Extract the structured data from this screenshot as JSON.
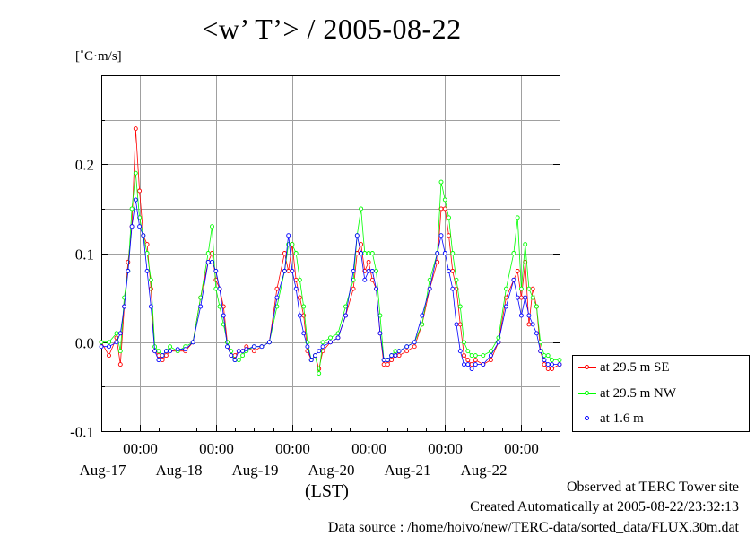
{
  "title": "<w’ T’> / 2005-08-22",
  "unit_label": "[˚C·m/s]",
  "xlabel": "(LST)",
  "footer": {
    "line1": "Observed at TERC Tower site",
    "line2": "Created Automatically at 2005-08-22/23:32:13",
    "line3": "Data source : /home/hoivo/new/TERC-data/sorted_data/FLUX.30m.dat"
  },
  "chart_data": {
    "type": "line",
    "title": "<w’ T’> / 2005-08-22",
    "ylabel": "[˚C·m/s]",
    "xlabel": "(LST)",
    "ylim": [
      -0.1,
      0.3
    ],
    "xlim": [
      16.5,
      22.5
    ],
    "yticks": [
      -0.1,
      0.0,
      0.1,
      0.2
    ],
    "ytick_labels": [
      "-0.1",
      "0.0",
      "0.1",
      "0.2"
    ],
    "xticks": [
      17,
      18,
      19,
      20,
      21,
      22
    ],
    "xtick_labels": [
      "00:00",
      "00:00",
      "00:00",
      "00:00",
      "00:00",
      "00:00"
    ],
    "date_labels": [
      "Aug-17",
      "Aug-18",
      "Aug-19",
      "Aug-20",
      "Aug-21",
      "Aug-22"
    ],
    "grid": true,
    "legend_position": "right",
    "series": [
      {
        "name": "at 29.5 m SE",
        "color": "#ff0000",
        "x": [
          16.5,
          16.6,
          16.7,
          16.75,
          16.8,
          16.85,
          16.9,
          16.95,
          17.0,
          17.05,
          17.1,
          17.15,
          17.2,
          17.25,
          17.3,
          17.35,
          17.4,
          17.5,
          17.6,
          17.7,
          17.8,
          17.9,
          17.95,
          18.0,
          18.05,
          18.1,
          18.15,
          18.2,
          18.25,
          18.3,
          18.35,
          18.4,
          18.5,
          18.6,
          18.7,
          18.8,
          18.9,
          18.95,
          19.0,
          19.05,
          19.1,
          19.15,
          19.2,
          19.25,
          19.3,
          19.35,
          19.4,
          19.5,
          19.6,
          19.7,
          19.8,
          19.85,
          19.9,
          19.95,
          20.0,
          20.05,
          20.1,
          20.15,
          20.2,
          20.25,
          20.3,
          20.35,
          20.4,
          20.5,
          20.6,
          20.7,
          20.8,
          20.9,
          20.95,
          21.0,
          21.05,
          21.1,
          21.15,
          21.2,
          21.25,
          21.3,
          21.35,
          21.4,
          21.5,
          21.6,
          21.7,
          21.8,
          21.9,
          21.95,
          22.0,
          22.05,
          22.1,
          22.15,
          22.2,
          22.25,
          22.3,
          22.35,
          22.4,
          22.5
        ],
        "y": [
          0.0,
          -0.015,
          0.005,
          -0.025,
          0.04,
          0.09,
          0.13,
          0.24,
          0.17,
          0.12,
          0.11,
          0.06,
          -0.01,
          -0.015,
          -0.02,
          -0.015,
          -0.01,
          -0.01,
          -0.01,
          0.0,
          0.05,
          0.09,
          0.1,
          0.07,
          0.06,
          0.04,
          0.0,
          -0.015,
          -0.015,
          -0.01,
          -0.01,
          -0.005,
          -0.01,
          -0.005,
          0.0,
          0.06,
          0.1,
          0.08,
          0.11,
          0.07,
          0.05,
          0.03,
          -0.01,
          -0.02,
          -0.015,
          -0.03,
          -0.01,
          0.0,
          0.005,
          0.03,
          0.06,
          0.1,
          0.11,
          0.08,
          0.09,
          0.07,
          0.06,
          0.01,
          -0.025,
          -0.025,
          -0.02,
          -0.015,
          -0.015,
          -0.01,
          -0.005,
          0.02,
          0.06,
          0.09,
          0.15,
          0.15,
          0.12,
          0.08,
          0.06,
          0.02,
          -0.015,
          -0.02,
          -0.025,
          -0.02,
          -0.025,
          -0.02,
          0.0,
          0.05,
          0.07,
          0.08,
          0.05,
          0.09,
          0.02,
          0.06,
          0.04,
          -0.01,
          -0.025,
          -0.03,
          -0.03,
          -0.025
        ]
      },
      {
        "name": "at 29.5 m NW",
        "color": "#00ff00",
        "x": [
          16.5,
          16.6,
          16.7,
          16.75,
          16.8,
          16.85,
          16.9,
          16.95,
          17.0,
          17.05,
          17.1,
          17.15,
          17.2,
          17.25,
          17.3,
          17.35,
          17.4,
          17.5,
          17.6,
          17.7,
          17.8,
          17.9,
          17.95,
          18.0,
          18.05,
          18.1,
          18.15,
          18.2,
          18.25,
          18.3,
          18.35,
          18.4,
          18.5,
          18.6,
          18.7,
          18.8,
          18.9,
          18.95,
          19.0,
          19.05,
          19.1,
          19.15,
          19.2,
          19.25,
          19.3,
          19.35,
          19.4,
          19.5,
          19.6,
          19.7,
          19.8,
          19.85,
          19.9,
          19.95,
          20.0,
          20.05,
          20.1,
          20.15,
          20.2,
          20.25,
          20.3,
          20.35,
          20.4,
          20.5,
          20.6,
          20.7,
          20.8,
          20.9,
          20.95,
          21.0,
          21.05,
          21.1,
          21.15,
          21.2,
          21.25,
          21.3,
          21.35,
          21.4,
          21.5,
          21.6,
          21.7,
          21.8,
          21.9,
          21.95,
          22.0,
          22.05,
          22.1,
          22.15,
          22.2,
          22.25,
          22.3,
          22.35,
          22.4,
          22.5
        ],
        "y": [
          0.0,
          0.0,
          0.01,
          -0.01,
          0.05,
          0.08,
          0.15,
          0.19,
          0.14,
          0.12,
          0.1,
          0.07,
          -0.005,
          -0.01,
          -0.015,
          -0.01,
          -0.005,
          -0.01,
          -0.005,
          0.0,
          0.05,
          0.1,
          0.13,
          0.06,
          0.04,
          0.02,
          0.0,
          -0.01,
          -0.02,
          -0.02,
          -0.015,
          -0.01,
          -0.005,
          -0.005,
          0.0,
          0.04,
          0.08,
          0.11,
          0.11,
          0.1,
          0.07,
          0.04,
          0.0,
          -0.02,
          -0.015,
          -0.035,
          0.0,
          0.005,
          0.01,
          0.04,
          0.07,
          0.12,
          0.15,
          0.1,
          0.1,
          0.1,
          0.08,
          0.03,
          -0.02,
          -0.02,
          -0.015,
          -0.01,
          -0.01,
          -0.005,
          0.0,
          0.02,
          0.07,
          0.1,
          0.18,
          0.16,
          0.14,
          0.1,
          0.07,
          0.04,
          0.0,
          -0.01,
          -0.015,
          -0.015,
          -0.015,
          -0.01,
          0.005,
          0.06,
          0.1,
          0.14,
          0.06,
          0.11,
          0.06,
          0.05,
          0.04,
          0.0,
          -0.015,
          -0.015,
          -0.02,
          -0.02
        ]
      },
      {
        "name": "at 1.6 m",
        "color": "#0000ff",
        "x": [
          16.5,
          16.6,
          16.7,
          16.75,
          16.8,
          16.85,
          16.9,
          16.95,
          17.0,
          17.05,
          17.1,
          17.15,
          17.2,
          17.25,
          17.3,
          17.35,
          17.4,
          17.5,
          17.6,
          17.7,
          17.8,
          17.9,
          17.95,
          18.0,
          18.05,
          18.1,
          18.15,
          18.2,
          18.25,
          18.3,
          18.35,
          18.4,
          18.5,
          18.6,
          18.7,
          18.8,
          18.9,
          18.95,
          19.0,
          19.05,
          19.1,
          19.15,
          19.2,
          19.25,
          19.3,
          19.35,
          19.4,
          19.5,
          19.6,
          19.7,
          19.8,
          19.85,
          19.9,
          19.95,
          20.0,
          20.05,
          20.1,
          20.15,
          20.2,
          20.25,
          20.3,
          20.35,
          20.4,
          20.5,
          20.6,
          20.7,
          20.8,
          20.9,
          20.95,
          21.0,
          21.05,
          21.1,
          21.15,
          21.2,
          21.25,
          21.3,
          21.35,
          21.4,
          21.5,
          21.6,
          21.7,
          21.8,
          21.9,
          21.95,
          22.0,
          22.05,
          22.1,
          22.15,
          22.2,
          22.25,
          22.3,
          22.35,
          22.4,
          22.5
        ],
        "y": [
          -0.005,
          -0.005,
          0.0,
          0.01,
          0.04,
          0.08,
          0.13,
          0.16,
          0.13,
          0.12,
          0.08,
          0.04,
          -0.01,
          -0.02,
          -0.015,
          -0.01,
          -0.01,
          -0.008,
          -0.008,
          0.0,
          0.04,
          0.09,
          0.09,
          0.08,
          0.06,
          0.03,
          -0.005,
          -0.015,
          -0.02,
          -0.01,
          -0.01,
          -0.008,
          -0.005,
          -0.005,
          0.0,
          0.05,
          0.08,
          0.12,
          0.08,
          0.06,
          0.03,
          0.01,
          -0.005,
          -0.02,
          -0.015,
          -0.01,
          -0.005,
          0.0,
          0.005,
          0.03,
          0.08,
          0.12,
          0.1,
          0.07,
          0.08,
          0.08,
          0.06,
          0.01,
          -0.02,
          -0.02,
          -0.015,
          -0.015,
          -0.01,
          -0.005,
          0.0,
          0.03,
          0.06,
          0.1,
          0.12,
          0.1,
          0.08,
          0.06,
          0.02,
          -0.01,
          -0.025,
          -0.025,
          -0.03,
          -0.025,
          -0.025,
          -0.015,
          0.0,
          0.04,
          0.07,
          0.05,
          0.03,
          0.05,
          0.03,
          0.02,
          0.01,
          -0.01,
          -0.02,
          -0.025,
          -0.025,
          -0.025
        ]
      }
    ]
  }
}
